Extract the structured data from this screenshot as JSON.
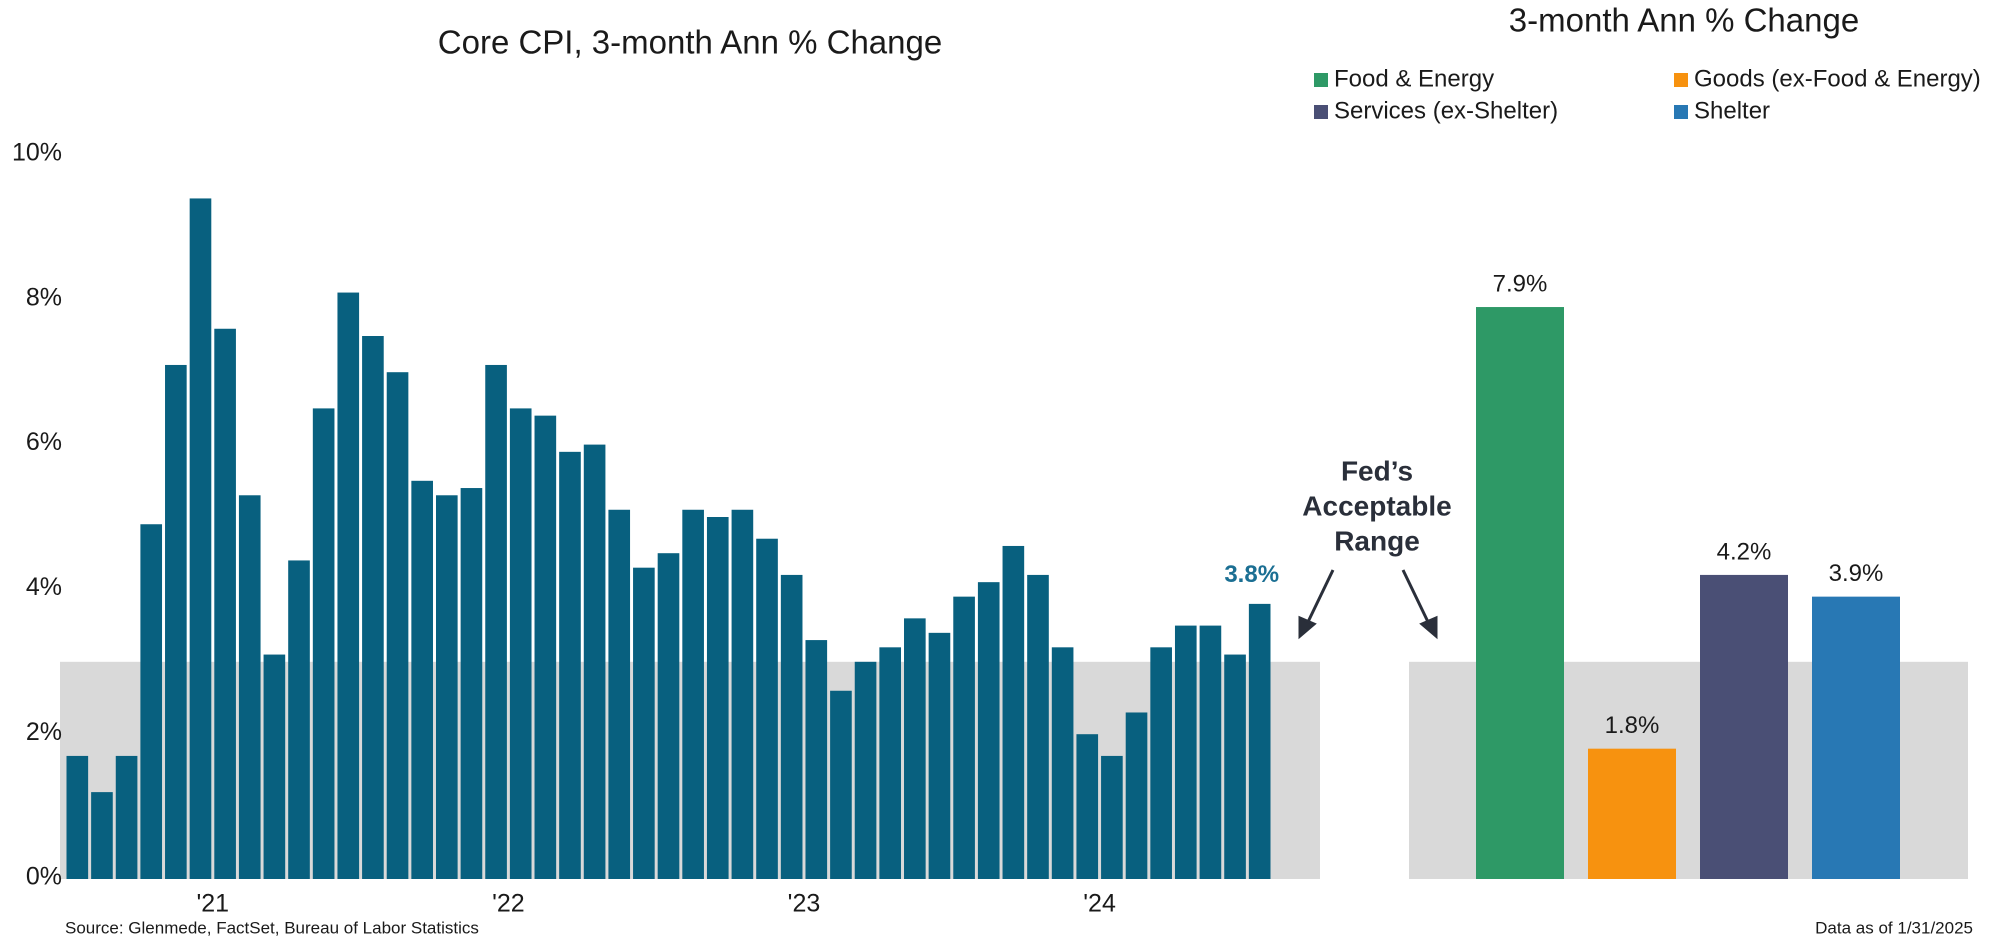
{
  "chart_data": [
    {
      "type": "bar",
      "title": "Core CPI, 3-month Ann % Change",
      "categories": [
        null,
        null,
        null,
        null,
        null,
        null,
        "'21",
        null,
        null,
        null,
        null,
        null,
        null,
        null,
        null,
        null,
        null,
        null,
        "'22",
        null,
        null,
        null,
        null,
        null,
        null,
        null,
        null,
        null,
        null,
        null,
        "'23",
        null,
        null,
        null,
        null,
        null,
        null,
        null,
        null,
        null,
        null,
        null,
        "'24",
        null,
        null,
        null,
        null,
        null,
        null
      ],
      "values": [
        1.7,
        1.2,
        1.7,
        4.9,
        7.1,
        9.4,
        7.6,
        5.3,
        3.1,
        4.4,
        6.5,
        8.1,
        7.5,
        7.0,
        5.5,
        5.3,
        5.4,
        7.1,
        6.5,
        6.4,
        5.9,
        6.0,
        5.1,
        4.3,
        4.5,
        5.1,
        5.0,
        5.1,
        4.7,
        4.2,
        3.3,
        2.6,
        3.0,
        3.2,
        3.6,
        3.4,
        3.9,
        4.1,
        4.6,
        4.2,
        3.2,
        2.0,
        1.7,
        2.3,
        3.2,
        3.5,
        3.5,
        3.1,
        3.8
      ],
      "value_labels": [
        null,
        null,
        null,
        null,
        null,
        null,
        null,
        null,
        null,
        null,
        null,
        null,
        null,
        null,
        null,
        null,
        null,
        null,
        null,
        null,
        null,
        null,
        null,
        null,
        null,
        null,
        null,
        null,
        null,
        null,
        null,
        null,
        null,
        null,
        null,
        null,
        null,
        null,
        null,
        null,
        null,
        null,
        null,
        null,
        null,
        null,
        null,
        null,
        "3.8%"
      ],
      "color": "#08607f",
      "value_label_color": "#1b6f93",
      "ylim": [
        0,
        10
      ],
      "yticks": [
        {
          "value": 0,
          "label": "0%"
        },
        {
          "value": 2,
          "label": "2%"
        },
        {
          "value": 4,
          "label": "4%"
        },
        {
          "value": 6,
          "label": "6%"
        },
        {
          "value": 8,
          "label": "8%"
        },
        {
          "value": 10,
          "label": "10%"
        }
      ],
      "shaded_range": [
        0,
        3
      ],
      "shaded_color": "#d9d9d9",
      "annotation": [
        "Fed’s",
        "Acceptable",
        "Range"
      ],
      "source": "Source: Glenmede, FactSet, Bureau of Labor Statistics"
    },
    {
      "type": "bar",
      "title": "3-month Ann % Change",
      "categories": [
        "Food & Energy",
        "Goods (ex-Food & Energy)",
        "Services (ex-Shelter)",
        "Shelter"
      ],
      "values": [
        7.9,
        1.8,
        4.2,
        3.9
      ],
      "value_labels": [
        "7.9%",
        "1.8%",
        "4.2%",
        "3.9%"
      ],
      "colors": [
        "#2e9966",
        "#f7920f",
        "#4a4f75",
        "#2878b4"
      ],
      "ylim": [
        0,
        10
      ],
      "shaded_range": [
        0,
        3
      ],
      "shaded_color": "#d9d9d9",
      "note": "Data as of 1/31/2025"
    }
  ]
}
